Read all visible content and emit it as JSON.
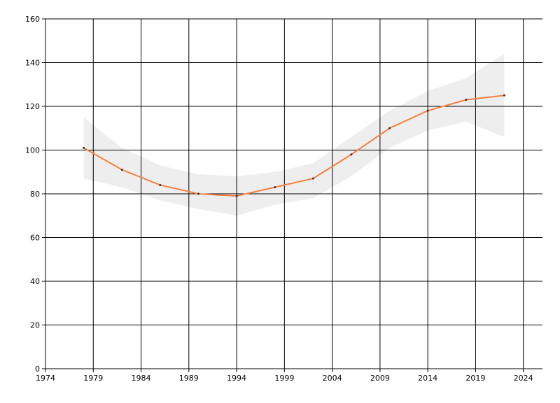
{
  "chart_data": {
    "type": "line",
    "x": [
      1978,
      1982,
      1986,
      1990,
      1994,
      1998,
      2002,
      2006,
      2010,
      2014,
      2018,
      2022
    ],
    "values": [
      101,
      91,
      84,
      80,
      79,
      83,
      87,
      98,
      110,
      118,
      123,
      125
    ],
    "lower": [
      87,
      83,
      77,
      73,
      70,
      75,
      78,
      88,
      101,
      109,
      113,
      106
    ],
    "upper": [
      115,
      101,
      93,
      89,
      88,
      90,
      94,
      106,
      118,
      127,
      133,
      144
    ],
    "color": "#f58142",
    "band_color": "#eeeeee",
    "marker_color": "#333333",
    "xlim": [
      1974,
      2026
    ],
    "ylim": [
      0,
      160
    ],
    "xticks": [
      1974,
      1979,
      1984,
      1989,
      1994,
      1999,
      2004,
      2009,
      2014,
      2019,
      2024
    ],
    "yticks": [
      0,
      20,
      40,
      60,
      80,
      100,
      120,
      140,
      160
    ],
    "grid": true
  }
}
